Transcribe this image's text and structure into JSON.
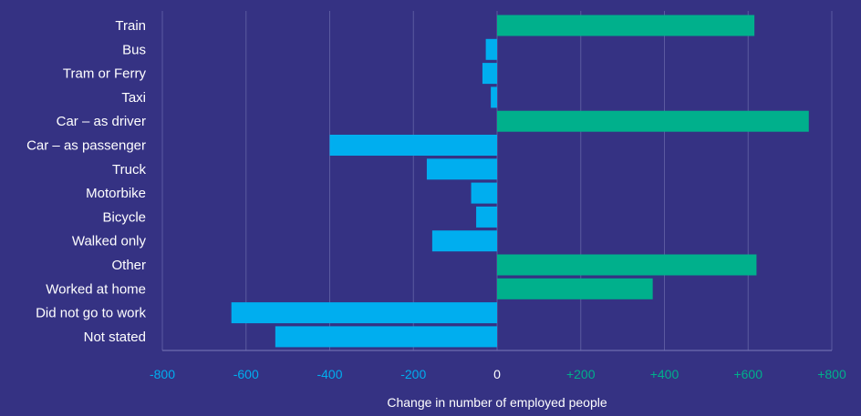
{
  "chart_data": {
    "type": "bar",
    "orientation": "horizontal",
    "title": "",
    "xlabel": "Change in number of employed people",
    "ylabel": "",
    "xlim": [
      -800,
      800
    ],
    "x_ticks": [
      -800,
      -600,
      -400,
      -200,
      0,
      200,
      400,
      600,
      800
    ],
    "x_tick_labels": [
      "-800",
      "-600",
      "-400",
      "-200",
      "0",
      "+200",
      "+400",
      "+600",
      "+800"
    ],
    "grid": "vertical",
    "categories": [
      "Train",
      "Bus",
      "Tram or Ferry",
      "Taxi",
      "Car – as driver",
      "Car – as passenger",
      "Truck",
      "Motorbike",
      "Bicycle",
      "Walked only",
      "Other",
      "Worked at home",
      "Did not go to work",
      "Not stated"
    ],
    "values": [
      615,
      -27,
      -35,
      -15,
      745,
      -400,
      -168,
      -62,
      -50,
      -155,
      620,
      372,
      -635,
      -530
    ]
  },
  "colors": {
    "background": "#353283",
    "positive": "#00b08c",
    "negative": "#00aeef",
    "grid": "#5b5aa0",
    "axis": "#7a79b8",
    "label": "#ffffff",
    "zero_tick": "#ffffff"
  }
}
